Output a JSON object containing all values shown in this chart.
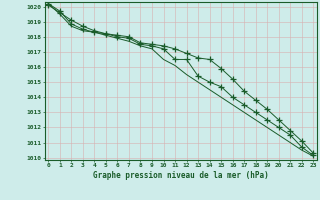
{
  "xlabel": "Graphe pression niveau de la mer (hPa)",
  "background_color": "#ceecea",
  "plot_bg_color": "#ceecea",
  "grid_color": "#b0c8c6",
  "line_color": "#1a5c2a",
  "hours": [
    0,
    1,
    2,
    3,
    4,
    5,
    6,
    7,
    8,
    9,
    10,
    11,
    12,
    13,
    14,
    15,
    16,
    17,
    18,
    19,
    20,
    21,
    22,
    23
  ],
  "line1": [
    1020.1,
    1019.6,
    1019.1,
    1018.7,
    1018.4,
    1018.2,
    1018.1,
    1018.0,
    1017.6,
    1017.5,
    1017.4,
    1017.2,
    1016.9,
    1016.6,
    1016.5,
    1015.9,
    1015.2,
    1014.4,
    1013.8,
    1013.2,
    1012.5,
    1011.8,
    1011.1,
    1010.3
  ],
  "line2": [
    1020.2,
    1019.7,
    1018.85,
    1018.5,
    1018.3,
    1018.2,
    1018.0,
    1017.9,
    1017.5,
    1017.4,
    1017.2,
    1016.5,
    1016.5,
    1015.4,
    1015.0,
    1014.7,
    1014.0,
    1013.5,
    1013.0,
    1012.5,
    1012.0,
    1011.5,
    1010.7,
    1010.15
  ],
  "line3": [
    1020.2,
    1019.5,
    1018.7,
    1018.4,
    1018.3,
    1018.1,
    1017.9,
    1017.7,
    1017.4,
    1017.2,
    1016.5,
    1016.1,
    1015.5,
    1015.0,
    1014.5,
    1014.0,
    1013.5,
    1013.0,
    1012.5,
    1012.0,
    1011.5,
    1011.0,
    1010.5,
    1010.1
  ],
  "ylim_min": 1010,
  "ylim_max": 1020,
  "marker": "+",
  "marker_size": 4,
  "lw": 0.7
}
